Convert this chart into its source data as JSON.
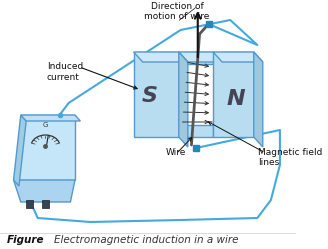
{
  "bg_color": "#ffffff",
  "figure_label": "Figure",
  "figure_caption": "Electromagnetic induction in a wire",
  "magnet_face": "#b8ddf0",
  "magnet_top": "#cce8f7",
  "magnet_side": "#9dc8e0",
  "magnet_edge": "#5599cc",
  "wire_blue": "#44aadd",
  "wire_dark": "#666666",
  "arrow_black": "#111111",
  "field_arrow": "#333333",
  "text_color": "#111111",
  "caption_color": "#555555",
  "title_direction": "Direction of\nmotion of wire",
  "label_induced": "Induced\ncurrent",
  "label_wire": "Wire",
  "label_field": "Magnetic field\nlines",
  "magnet_s": "S",
  "magnet_n": "N"
}
